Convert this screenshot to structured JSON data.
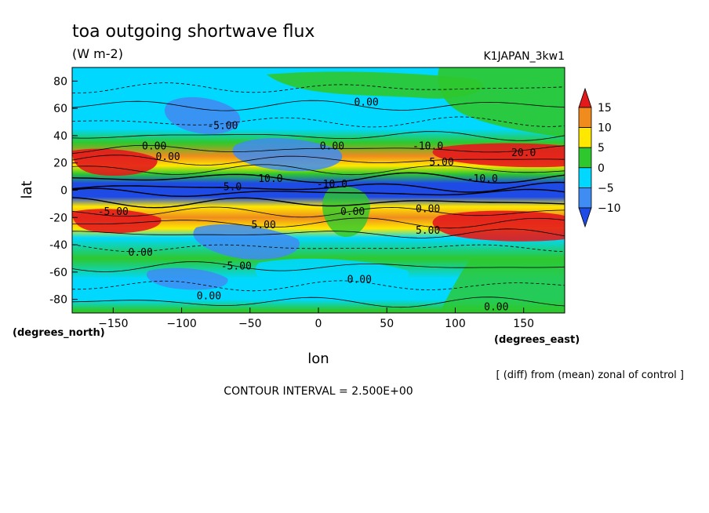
{
  "chart_data": {
    "type": "heatmap",
    "title": "toa outgoing shortwave flux",
    "units": "(W m-2)",
    "run_label": "K1JAPAN_3kw1",
    "xlabel": "lon",
    "ylabel": "lat",
    "x_unit_label": "(degrees_east)",
    "y_unit_label": "(degrees_north)",
    "xlim": [
      -180,
      180
    ],
    "ylim": [
      -90,
      90
    ],
    "x_ticks": [
      -150,
      -100,
      -50,
      0,
      50,
      100,
      150
    ],
    "y_ticks": [
      80,
      60,
      40,
      20,
      0,
      -20,
      -40,
      -60,
      -80
    ],
    "colorbar": {
      "ticks": [
        15,
        10,
        5,
        0,
        -5,
        -10
      ],
      "levels": [
        {
          "range": "> 15",
          "color": "#e31a1c"
        },
        {
          "range": "10 to 15",
          "color": "#f08c1e"
        },
        {
          "range": "5 to 10",
          "color": "#ffe800"
        },
        {
          "range": "0 to 5",
          "color": "#2ec82e"
        },
        {
          "range": "-5 to 0",
          "color": "#00d8ff"
        },
        {
          "range": "-10 to -5",
          "color": "#3f8cf2"
        },
        {
          "range": "< -10",
          "color": "#1e4be6"
        }
      ]
    },
    "contour_labels": [
      "0.00",
      "-5.00",
      "-10.0",
      "10.0",
      "20.0",
      "5.00",
      "-5.0"
    ],
    "contour_interval_text": "CONTOUR INTERVAL = 2.500E+00",
    "footnote": "[ (diff) from (mean) zonal of control ]",
    "latitude_bands": [
      {
        "lat": 85,
        "value": 0
      },
      {
        "lat": 70,
        "value": -2
      },
      {
        "lat": 55,
        "value": -3
      },
      {
        "lat": 45,
        "value": -4
      },
      {
        "lat": 35,
        "value": 3
      },
      {
        "lat": 25,
        "value": 13
      },
      {
        "lat": 18,
        "value": 8
      },
      {
        "lat": 12,
        "value": 3
      },
      {
        "lat": 5,
        "value": -12
      },
      {
        "lat": -5,
        "value": -12
      },
      {
        "lat": -12,
        "value": 7
      },
      {
        "lat": -20,
        "value": 15
      },
      {
        "lat": -28,
        "value": 6
      },
      {
        "lat": -35,
        "value": -4
      },
      {
        "lat": -50,
        "value": 2
      },
      {
        "lat": -65,
        "value": -4
      },
      {
        "lat": -80,
        "value": -1
      },
      {
        "lat": -88,
        "value": 1
      }
    ]
  }
}
